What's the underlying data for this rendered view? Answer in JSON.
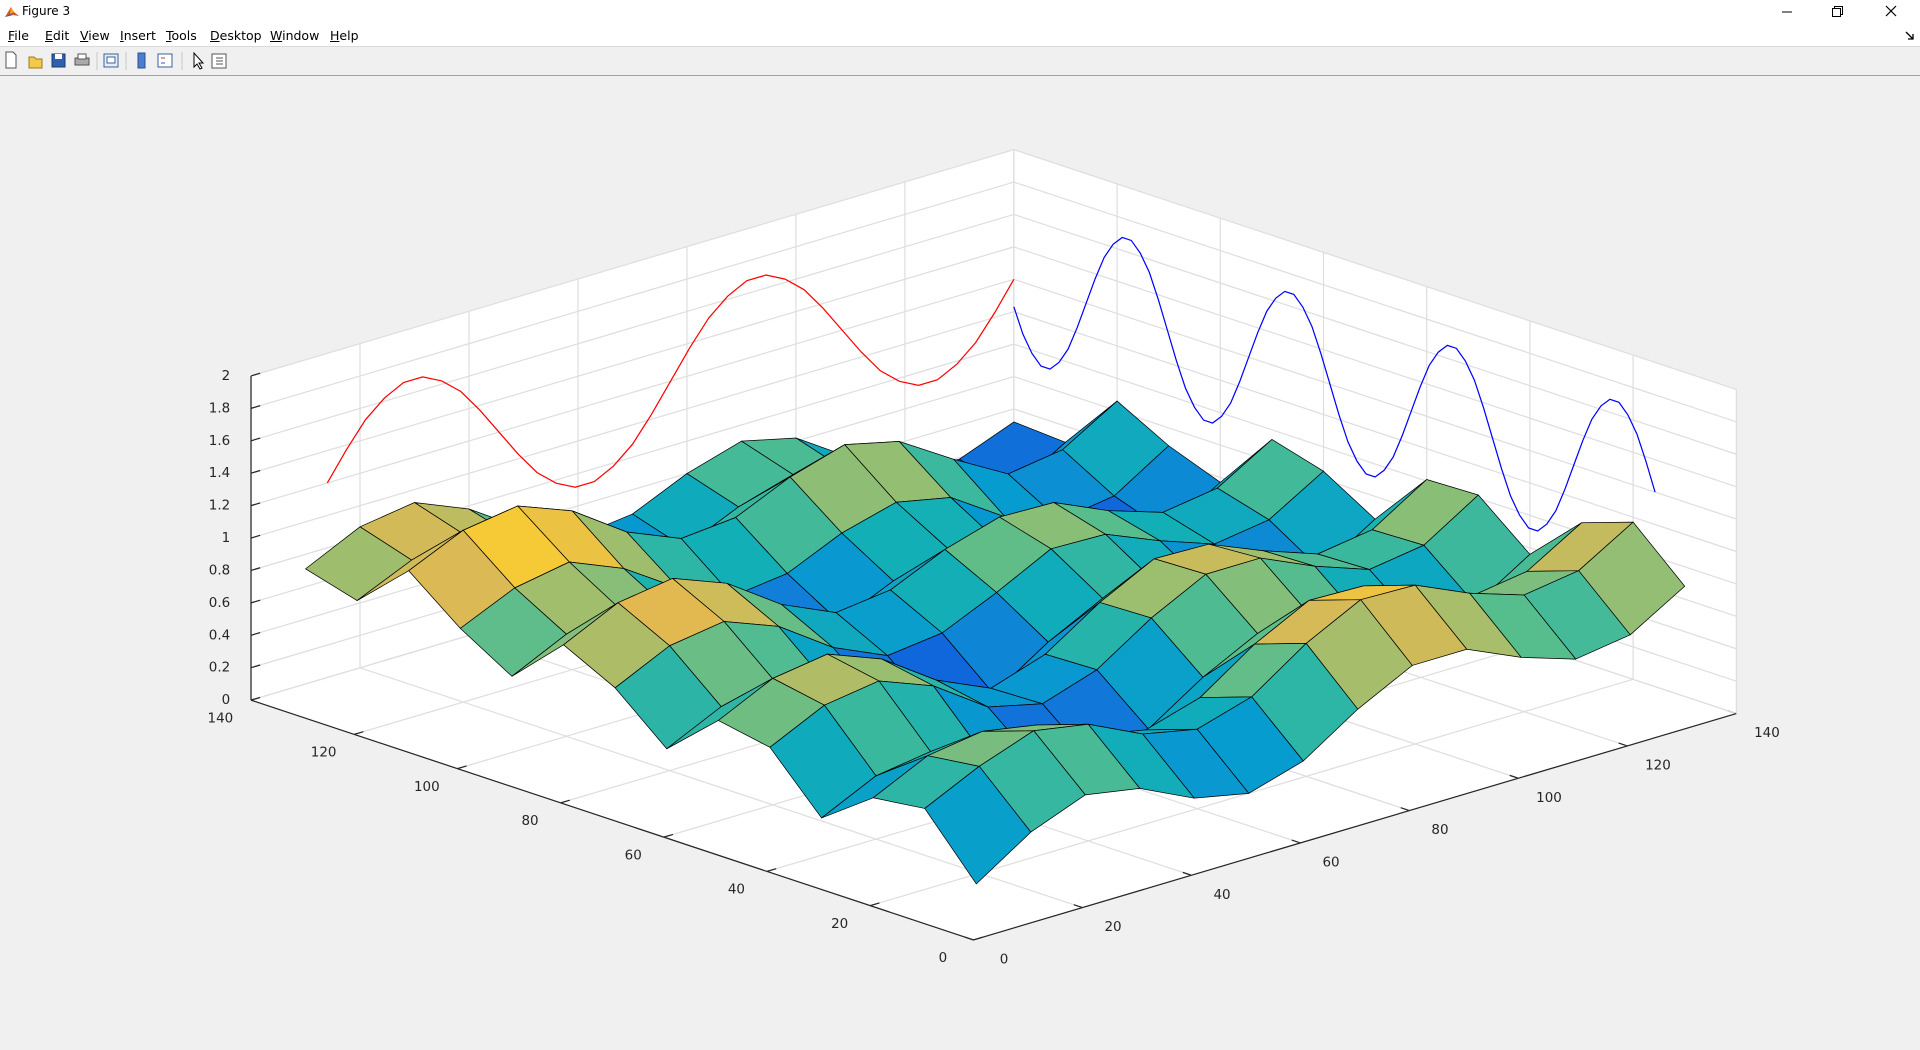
{
  "window": {
    "title": "Figure 3",
    "menu": [
      "File",
      "Edit",
      "View",
      "Insert",
      "Tools",
      "Desktop",
      "Window",
      "Help"
    ]
  },
  "chart_data": {
    "type": "surface3d",
    "xlim": [
      0,
      140
    ],
    "ylim": [
      0,
      140
    ],
    "zlim": [
      0,
      2
    ],
    "xticks": [
      0,
      20,
      40,
      60,
      80,
      100,
      120,
      140
    ],
    "yticks": [
      0,
      20,
      40,
      60,
      80,
      100,
      120,
      140
    ],
    "zticks": [
      0,
      0.2,
      0.4,
      0.6,
      0.8,
      1,
      1.2,
      1.4,
      1.6,
      1.8,
      2
    ],
    "grid": true,
    "surface": {
      "x": [
        10,
        20,
        30,
        40,
        50,
        60,
        70,
        80,
        90,
        100,
        110,
        120,
        130,
        140
      ],
      "y": [
        10,
        20,
        30,
        40,
        50,
        60,
        70,
        80,
        90,
        100,
        110,
        120,
        130,
        140
      ],
      "z": [
        [
          0.14,
          0.36,
          0.49,
          0.43,
          0.27,
          0.2,
          0.3,
          0.52,
          0.69,
          0.69,
          0.54,
          0.43,
          0.48,
          0.68
        ],
        [
          0.5,
          0.66,
          0.78,
          0.72,
          0.56,
          0.49,
          0.59,
          0.82,
          0.99,
          0.98,
          0.83,
          0.72,
          0.77,
          0.97
        ],
        [
          0.46,
          0.62,
          0.67,
          0.61,
          0.45,
          0.38,
          0.48,
          0.71,
          0.88,
          0.87,
          0.72,
          0.61,
          0.66,
          0.86
        ],
        [
          0.23,
          0.39,
          0.44,
          0.31,
          0.15,
          0.07,
          0.18,
          0.4,
          0.57,
          0.57,
          0.42,
          0.31,
          0.35,
          0.56
        ],
        [
          0.56,
          0.72,
          0.77,
          0.64,
          0.41,
          0.33,
          0.44,
          0.66,
          0.83,
          0.83,
          0.68,
          0.56,
          0.61,
          0.82
        ],
        [
          0.62,
          0.78,
          0.83,
          0.7,
          0.47,
          0.32,
          0.43,
          0.65,
          0.82,
          0.81,
          0.67,
          0.55,
          0.6,
          0.81
        ],
        [
          0.34,
          0.5,
          0.55,
          0.42,
          0.19,
          0.04,
          0.08,
          0.3,
          0.47,
          0.46,
          0.32,
          0.2,
          0.25,
          0.46
        ],
        [
          0.61,
          0.77,
          0.82,
          0.69,
          0.46,
          0.31,
          0.35,
          0.5,
          0.67,
          0.66,
          0.52,
          0.4,
          0.45,
          0.65
        ],
        [
          0.77,
          0.93,
          0.98,
          0.85,
          0.62,
          0.47,
          0.51,
          0.66,
          0.76,
          0.75,
          0.6,
          0.49,
          0.54,
          0.74
        ],
        [
          0.47,
          0.63,
          0.68,
          0.55,
          0.32,
          0.17,
          0.21,
          0.36,
          0.46,
          0.38,
          0.23,
          0.12,
          0.17,
          0.37
        ],
        [
          0.66,
          0.81,
          0.87,
          0.73,
          0.51,
          0.36,
          0.4,
          0.55,
          0.64,
          0.57,
          0.35,
          0.23,
          0.28,
          0.49
        ],
        [
          0.91,
          1.06,
          1.11,
          0.98,
          0.75,
          0.61,
          0.64,
          0.79,
          0.89,
          0.81,
          0.6,
          0.41,
          0.46,
          0.66
        ],
        [
          0.62,
          0.77,
          0.82,
          0.69,
          0.46,
          0.32,
          0.35,
          0.5,
          0.6,
          0.52,
          0.31,
          0.12,
          0.1,
          0.3
        ],
        [
          0.71,
          0.87,
          0.92,
          0.78,
          0.56,
          0.41,
          0.45,
          0.6,
          0.7,
          0.62,
          0.4,
          0.21,
          0.19,
          0.32
        ]
      ]
    },
    "series": [
      {
        "color": "#ff0000",
        "x": [
          14,
          17.5,
          21,
          24.5,
          28,
          31.5,
          35,
          38.5,
          42,
          45.5,
          49,
          52.5,
          56,
          59.5,
          63,
          66.5,
          70,
          73.5,
          77,
          80.5,
          84,
          87.5,
          91,
          94.5,
          98,
          101.5,
          105,
          108.5,
          112,
          115.5,
          119,
          122.5,
          126,
          129.5,
          133,
          136.5,
          140
        ],
        "values": [
          1.2,
          1.37,
          1.52,
          1.62,
          1.68,
          1.68,
          1.62,
          1.52,
          1.37,
          1.2,
          1.03,
          0.88,
          0.78,
          0.72,
          0.72,
          0.78,
          0.88,
          1.03,
          1.2,
          1.37,
          1.52,
          1.62,
          1.68,
          1.68,
          1.62,
          1.52,
          1.37,
          1.2,
          1.03,
          0.88,
          0.78,
          0.72,
          0.72,
          0.78,
          0.88,
          1.03,
          1.2
        ]
      },
      {
        "color": "#0000ff",
        "y": [
          15.75,
          17.5,
          19.25,
          21,
          22.75,
          24.5,
          26.25,
          28,
          29.75,
          31.5,
          33.25,
          35,
          36.75,
          38.5,
          40.25,
          42,
          43.75,
          45.5,
          47.25,
          49,
          50.75,
          52.5,
          54.25,
          56,
          57.75,
          59.5,
          61.25,
          63,
          64.75,
          66.5,
          68.25,
          70,
          71.75,
          73.5,
          75.25,
          77,
          78.75,
          80.5,
          82.25,
          84,
          85.75,
          87.5,
          89.25,
          91,
          92.75,
          94.5,
          96.25,
          98,
          99.75,
          101.5,
          103.25,
          105,
          106.75,
          108.5,
          110.25,
          112,
          113.75,
          115.5,
          117.25,
          119,
          120.75,
          122.5,
          124.25,
          126,
          127.75,
          129.5,
          131.25,
          133,
          134.75,
          136.5,
          138.25,
          140
        ],
        "values": [
          1.2,
          1.37,
          1.52,
          1.62,
          1.68,
          1.68,
          1.62,
          1.52,
          1.37,
          1.2,
          1.03,
          0.88,
          0.78,
          0.72,
          0.72,
          0.78,
          0.88,
          1.03,
          1.2,
          1.37,
          1.52,
          1.62,
          1.68,
          1.68,
          1.62,
          1.52,
          1.37,
          1.2,
          1.03,
          0.88,
          0.78,
          0.72,
          0.72,
          0.78,
          0.88,
          1.03,
          1.2,
          1.37,
          1.52,
          1.62,
          1.68,
          1.68,
          1.62,
          1.52,
          1.37,
          1.2,
          1.03,
          0.88,
          0.78,
          0.72,
          0.72,
          0.78,
          0.88,
          1.03,
          1.2,
          1.37,
          1.52,
          1.62,
          1.68,
          1.68,
          1.62,
          1.52,
          1.37,
          1.2,
          1.03,
          0.88,
          0.78,
          0.72,
          0.72,
          0.78,
          0.88,
          1.03
        ]
      }
    ]
  }
}
